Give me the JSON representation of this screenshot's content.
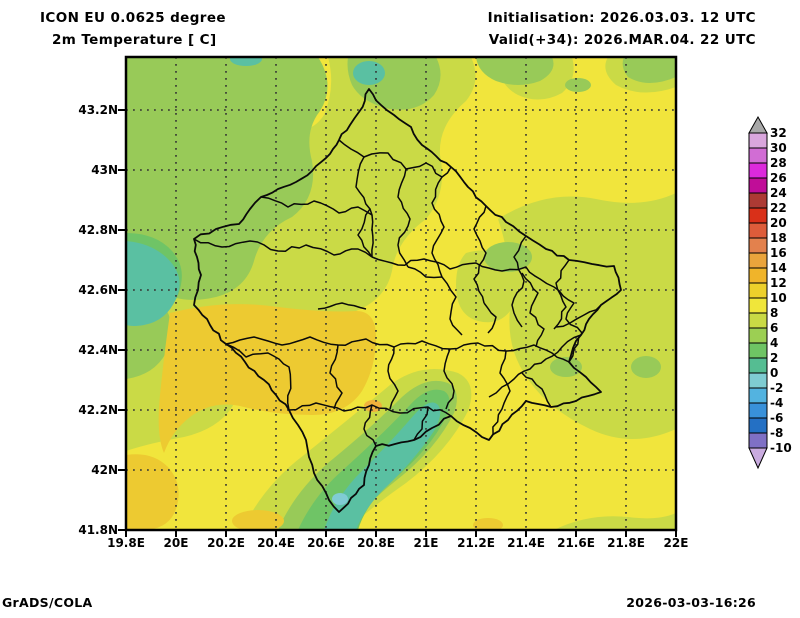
{
  "header": {
    "title_line1": "ICON EU 0.0625 degree",
    "title_line2": "2m Temperature [ C]",
    "init_line": "Initialisation: 2026.03.03. 12 UTC",
    "valid_line": "Valid(+34): 2026.MAR.04. 22 UTC"
  },
  "footer": {
    "left": "GrADS/COLA",
    "right": "2026-03-03-16:26"
  },
  "axes": {
    "lat_ticks": [
      {
        "value": 43.2,
        "label": "43.2N"
      },
      {
        "value": 43.0,
        "label": "43N"
      },
      {
        "value": 42.8,
        "label": "42.8N"
      },
      {
        "value": 42.6,
        "label": "42.6N"
      },
      {
        "value": 42.4,
        "label": "42.4N"
      },
      {
        "value": 42.2,
        "label": "42.2N"
      },
      {
        "value": 42.0,
        "label": "42N"
      },
      {
        "value": 41.8,
        "label": "41.8N"
      }
    ],
    "lon_ticks": [
      {
        "value": 19.8,
        "label": "19.8E"
      },
      {
        "value": 20.0,
        "label": "20E"
      },
      {
        "value": 20.2,
        "label": "20.2E"
      },
      {
        "value": 20.4,
        "label": "20.4E"
      },
      {
        "value": 20.6,
        "label": "20.6E"
      },
      {
        "value": 20.8,
        "label": "20.8E"
      },
      {
        "value": 21.0,
        "label": "21E"
      },
      {
        "value": 21.2,
        "label": "21.2E"
      },
      {
        "value": 21.4,
        "label": "21.4E"
      },
      {
        "value": 21.6,
        "label": "21.6E"
      },
      {
        "value": 21.8,
        "label": "21.8E"
      },
      {
        "value": 22.0,
        "label": "22E"
      }
    ]
  },
  "colorbar": {
    "labels": [
      "32",
      "30",
      "28",
      "26",
      "24",
      "22",
      "20",
      "18",
      "16",
      "14",
      "12",
      "10",
      "8",
      "6",
      "4",
      "2",
      "0",
      "-2",
      "-4",
      "-6",
      "-8",
      "-10"
    ],
    "box_colors": [
      "#d9a6dd",
      "#d16dd4",
      "#dc2adc",
      "#c00d98",
      "#ad3a34",
      "#d93019",
      "#dd5c3a",
      "#e3814d",
      "#eaa43c",
      "#f0b42a",
      "#edd02b",
      "#f0e63a",
      "#c9da45",
      "#9ccf53",
      "#6ec464",
      "#55bd92",
      "#7fccd2",
      "#53b3e0",
      "#3991da",
      "#2470c4",
      "#7f70c5"
    ],
    "arrow_top_color": "#a8a8a8",
    "arrow_bottom_color": "#c9abdf"
  },
  "palette": {
    "base_yellow": "#f1e53c",
    "yellow_green": "#cada46",
    "green": "#98ca58",
    "mid_green": "#6fc466",
    "teal": "#5ac0a2",
    "cyan": "#80ccd4",
    "gold": "#edca31",
    "amber": "#f0b13c",
    "boundary": "#0a0a0a",
    "grid_dots": "#333333",
    "frame": "#000000"
  }
}
